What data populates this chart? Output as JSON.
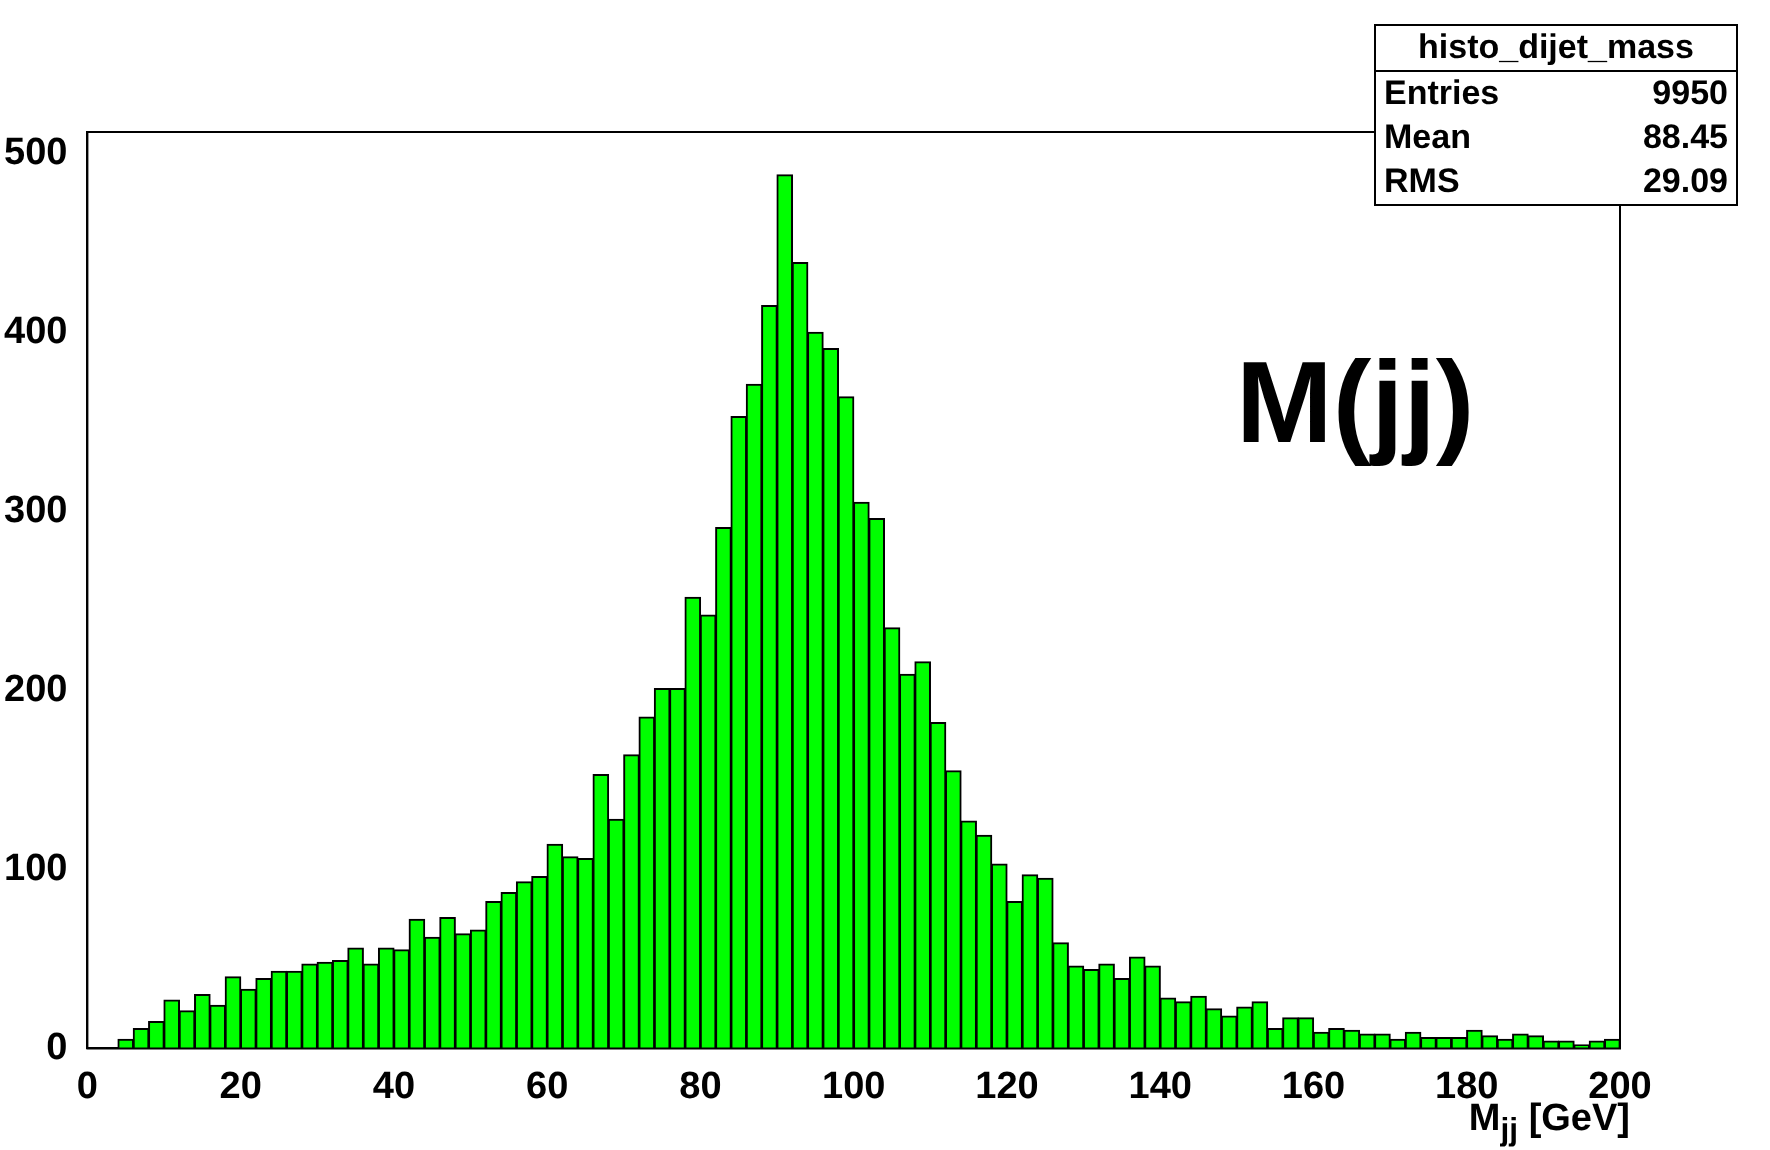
{
  "chart_data": {
    "type": "histogram",
    "xlabel": "M$_{jj}$ [GeV]",
    "bins": [
      0,
      2,
      4,
      6,
      8,
      10,
      12,
      14,
      16,
      18,
      20,
      22,
      24,
      26,
      28,
      30,
      32,
      34,
      36,
      38,
      40,
      42,
      44,
      46,
      48,
      50,
      52,
      54,
      56,
      58,
      60,
      62,
      64,
      66,
      68,
      70,
      72,
      74,
      76,
      78,
      80,
      82,
      84,
      86,
      88,
      90,
      92,
      94,
      96,
      98,
      100,
      102,
      104,
      106,
      108,
      110,
      112,
      114,
      116,
      118,
      120,
      122,
      124,
      126,
      128,
      130,
      132,
      134,
      136,
      138,
      140,
      142,
      144,
      146,
      148,
      150,
      152,
      154,
      156,
      158,
      160,
      162,
      164,
      166,
      168,
      170,
      172,
      174,
      176,
      178,
      180,
      182,
      184,
      186,
      188,
      190,
      192,
      194,
      196,
      198,
      200
    ],
    "values": [
      0,
      0,
      5,
      11,
      15,
      27,
      21,
      30,
      24,
      40,
      33,
      39,
      43,
      43,
      47,
      48,
      49,
      56,
      47,
      56,
      55,
      72,
      62,
      73,
      64,
      66,
      82,
      87,
      93,
      96,
      114,
      107,
      106,
      153,
      128,
      164,
      185,
      201,
      201,
      252,
      242,
      291,
      353,
      371,
      415,
      488,
      439,
      400,
      391,
      364,
      305,
      296,
      235,
      209,
      216,
      182,
      155,
      127,
      119,
      103,
      82,
      97,
      95,
      59,
      46,
      44,
      47,
      39,
      51,
      46,
      28,
      26,
      29,
      22,
      18,
      23,
      26,
      11,
      17,
      17,
      9,
      11,
      10,
      8,
      8,
      5,
      9,
      6,
      6,
      6,
      10,
      7,
      5,
      8,
      7,
      4,
      4,
      2,
      4,
      5
    ],
    "color": "#00ff00",
    "xlim": [
      0,
      200
    ],
    "xticks": [
      0,
      20,
      40,
      60,
      80,
      100,
      120,
      140,
      160,
      180,
      200
    ],
    "ylim": [
      0,
      512
    ],
    "yticks": [
      0,
      100,
      200,
      300,
      400,
      500
    ],
    "grid": false,
    "legend": false,
    "annotations": [
      "histo_dijet_mass",
      "Entries 9950",
      "Mean 88.45",
      "RMS 29.09",
      "M(jj)"
    ]
  }
}
